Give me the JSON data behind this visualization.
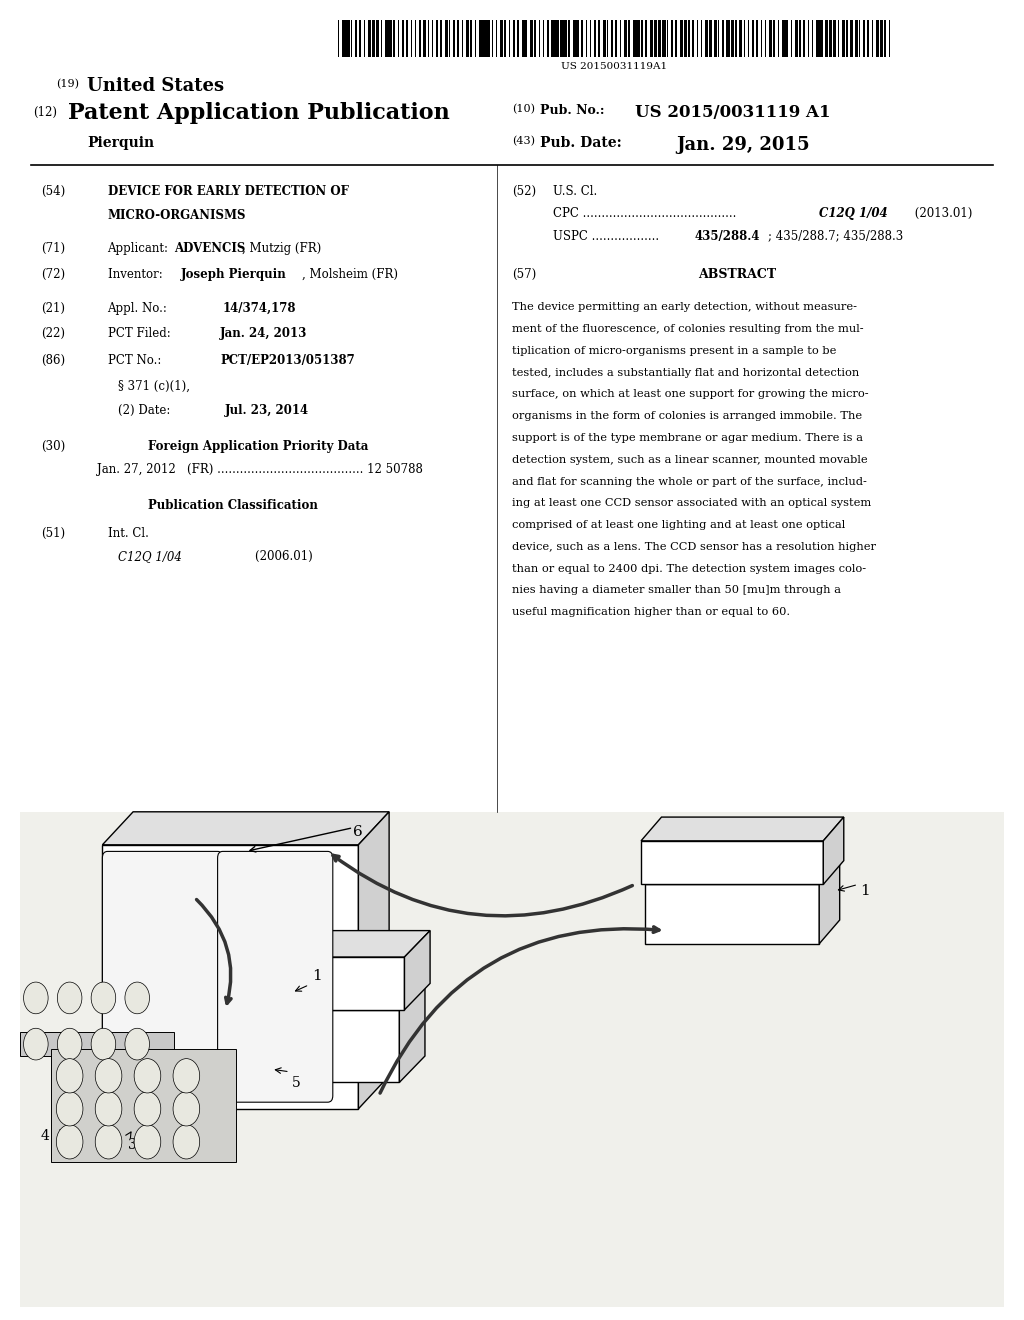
{
  "background_color": "#ffffff",
  "barcode_text": "US 20150031119A1",
  "header_19": "(19)",
  "header_19_text": "United States",
  "header_12": "(12)",
  "header_12_text": "Patent Application Publication",
  "header_inventor": "Pierquin",
  "header_10": "(10)",
  "header_10_text": "Pub. No.:",
  "header_10_value": "US 2015/0031119 A1",
  "header_43": "(43)",
  "header_43_text": "Pub. Date:",
  "header_43_value": "Jan. 29, 2015",
  "field_54_label": "(54)",
  "field_71_label": "(71)",
  "field_72_label": "(72)",
  "field_21_label": "(21)",
  "field_22_label": "(22)",
  "field_86_label": "(86)",
  "field_30_label": "(30)",
  "field_30_text": "Foreign Application Priority Data",
  "field_30_data": "Jan. 27, 2012   (FR) ....................................... 12 50788",
  "pub_class_title": "Publication Classification",
  "field_51_label": "(51)",
  "field_51_text": "Int. Cl.",
  "field_51_class": "C12Q 1/04",
  "field_51_year": "(2006.01)",
  "field_52_label": "(52)",
  "field_52_text": "U.S. Cl.",
  "field_57_label": "(57)",
  "field_57_title": "ABSTRACT",
  "abs_lines": [
    "The device permitting an early detection, without measure-",
    "ment of the fluorescence, of colonies resulting from the mul-",
    "tiplication of micro-organisms present in a sample to be",
    "tested, includes a substantially flat and horizontal detection",
    "surface, on which at least one support for growing the micro-",
    "organisms in the form of colonies is arranged immobile. The",
    "support is of the type membrane or agar medium. There is a",
    "detection system, such as a linear scanner, mounted movable",
    "and flat for scanning the whole or part of the surface, includ-",
    "ing at least one CCD sensor associated with an optical system",
    "comprised of at least one lighting and at least one optical",
    "device, such as a lens. The CCD sensor has a resolution higher",
    "than or equal to 2400 dpi. The detection system images colo-",
    "nies having a diameter smaller than 50 [mu]m through a",
    "useful magnification higher than or equal to 60."
  ]
}
